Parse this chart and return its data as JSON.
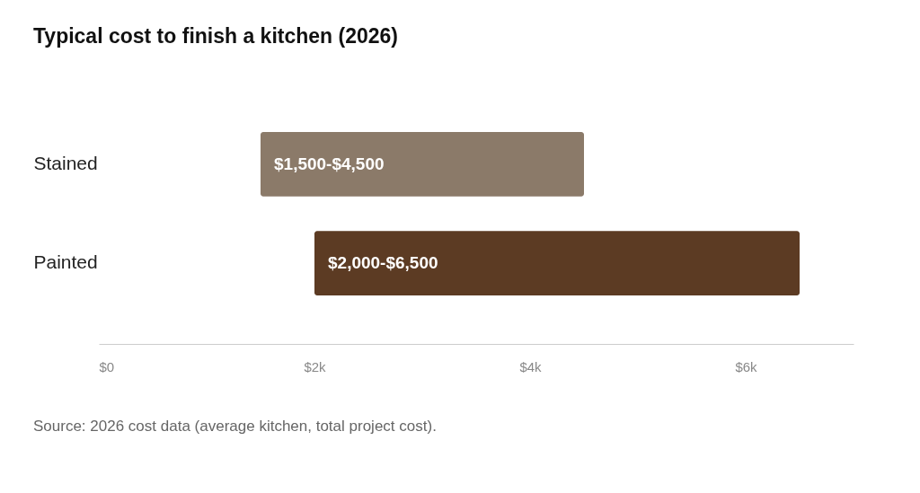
{
  "chart_data": {
    "type": "bar",
    "title": "Typical cost to finish a kitchen (2026)",
    "orientation": "horizontal",
    "categories": [
      "Stained",
      "Painted"
    ],
    "base": [
      1500,
      2000
    ],
    "values": [
      3000,
      4500
    ],
    "colors": [
      "#8b7a69",
      "#5c3b23"
    ],
    "value_labels": [
      "$1,500-$4,500",
      "$2,000-$6,500"
    ],
    "xlim": [
      0,
      7000
    ],
    "xticks": [
      {
        "value": 0,
        "label": "$0"
      },
      {
        "value": 2000,
        "label": "$2k"
      },
      {
        "value": 4000,
        "label": "$4k"
      },
      {
        "value": 6000,
        "label": "$6k"
      }
    ],
    "grid": false,
    "legend": false,
    "annotations": [
      "Source: 2026 cost data (average kitchen, total project cost)."
    ]
  }
}
